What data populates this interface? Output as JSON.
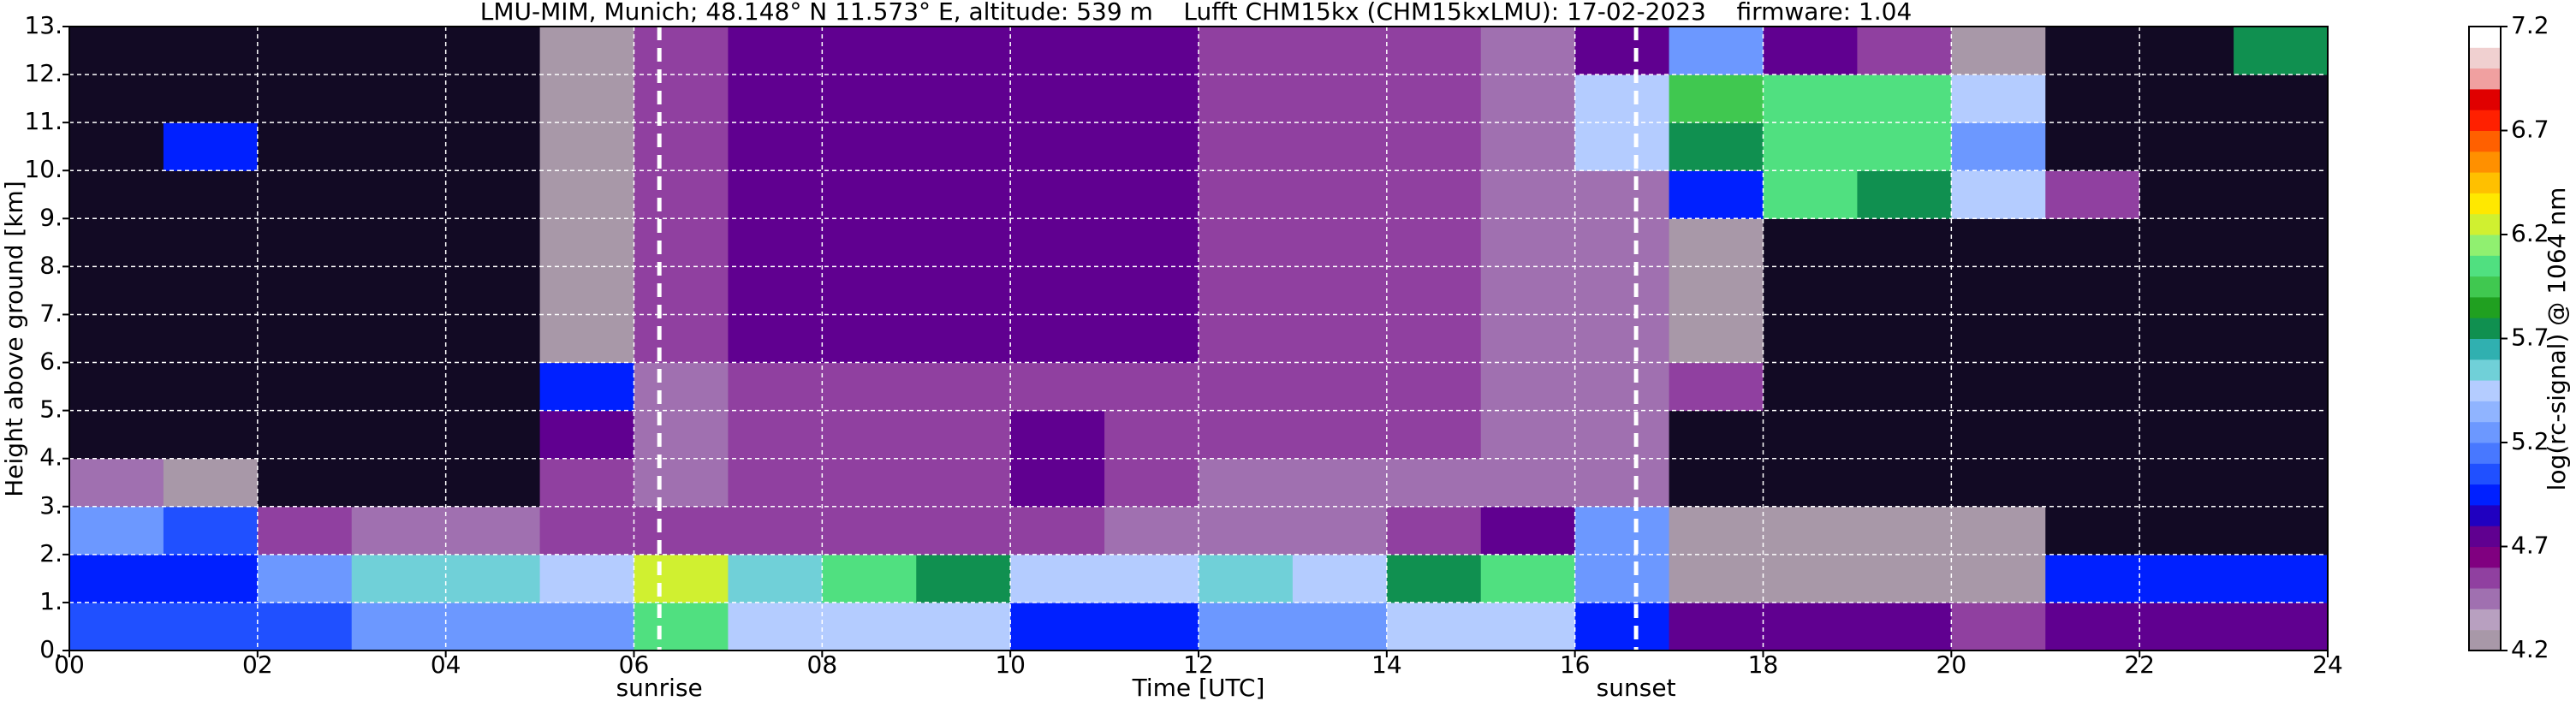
{
  "chart_data": {
    "type": "heatmap",
    "title": "LMU-MIM, Munich; 48.148° N 11.573° E, altitude: 539 m    Lufft CHM15kx (CHM15kxLMU): 17-02-2023    firmware: 1.04",
    "xlabel": "Time [UTC]",
    "ylabel": "Height above ground [km]",
    "xlim": [
      0,
      24
    ],
    "ylim": [
      0,
      13
    ],
    "xticks": [
      {
        "value": 0,
        "label": "00"
      },
      {
        "value": 2,
        "label": "02"
      },
      {
        "value": 4,
        "label": "04"
      },
      {
        "value": 6,
        "label": "06"
      },
      {
        "value": 8,
        "label": "08"
      },
      {
        "value": 10,
        "label": "10"
      },
      {
        "value": 12,
        "label": "12"
      },
      {
        "value": 14,
        "label": "14"
      },
      {
        "value": 16,
        "label": "16"
      },
      {
        "value": 18,
        "label": "18"
      },
      {
        "value": 20,
        "label": "20"
      },
      {
        "value": 22,
        "label": "22"
      },
      {
        "value": 24,
        "label": "24"
      }
    ],
    "yticks": [
      {
        "value": 0,
        "label": "0."
      },
      {
        "value": 1,
        "label": "1."
      },
      {
        "value": 2,
        "label": "2."
      },
      {
        "value": 3,
        "label": "3."
      },
      {
        "value": 4,
        "label": "4."
      },
      {
        "value": 5,
        "label": "5."
      },
      {
        "value": 6,
        "label": "6."
      },
      {
        "value": 7,
        "label": "7."
      },
      {
        "value": 8,
        "label": "8."
      },
      {
        "value": 9,
        "label": "9."
      },
      {
        "value": 10,
        "label": "10."
      },
      {
        "value": 11,
        "label": "11."
      },
      {
        "value": 12,
        "label": "12."
      },
      {
        "value": 13,
        "label": "13."
      }
    ],
    "grid": true,
    "grid_color": "#ffffff",
    "x_edges": [
      0,
      1,
      2,
      3,
      4,
      5,
      6,
      7,
      8,
      9,
      10,
      11,
      12,
      13,
      14,
      15,
      16,
      17,
      18,
      19,
      20,
      21,
      22,
      23,
      24
    ],
    "y_edges": [
      0,
      1,
      2,
      3,
      4,
      5,
      6,
      7,
      8,
      9,
      10,
      11,
      12,
      13
    ],
    "z": [
      [
        5.1,
        5.1,
        5.1,
        5.2,
        5.2,
        5.2,
        6.0,
        5.4,
        5.4,
        5.4,
        5.0,
        5.0,
        5.3,
        5.3,
        5.5,
        5.5,
        5.0,
        4.7,
        4.7,
        4.7,
        4.6,
        4.8,
        4.8,
        4.8
      ],
      [
        5.0,
        5.0,
        5.3,
        5.6,
        5.6,
        5.5,
        6.2,
        5.6,
        6.0,
        5.7,
        5.5,
        5.4,
        5.6,
        5.4,
        5.8,
        6.0,
        5.2,
        4.3,
        4.3,
        4.3,
        4.3,
        4.9,
        4.9,
        4.9
      ],
      [
        5.2,
        5.1,
        4.6,
        4.4,
        4.4,
        4.6,
        4.6,
        4.6,
        4.6,
        4.6,
        4.6,
        4.5,
        4.5,
        4.5,
        4.6,
        4.7,
        5.2,
        4.3,
        4.3,
        4.3,
        4.3,
        4.0,
        4.0,
        4.0
      ],
      [
        4.5,
        4.3,
        4.1,
        4.1,
        4.1,
        4.6,
        4.5,
        4.6,
        4.6,
        4.6,
        4.7,
        4.6,
        4.5,
        4.5,
        4.5,
        4.5,
        4.4,
        4.1,
        4.1,
        4.1,
        4.1,
        4.1,
        4.1,
        4.1
      ],
      [
        4.1,
        4.1,
        4.1,
        4.1,
        4.1,
        4.7,
        4.5,
        4.6,
        4.6,
        4.6,
        4.8,
        4.6,
        4.6,
        4.6,
        4.6,
        4.5,
        4.4,
        4.1,
        4.1,
        4.1,
        4.1,
        4.1,
        4.1,
        4.1
      ],
      [
        4.1,
        4.1,
        4.1,
        4.1,
        4.1,
        4.9,
        4.5,
        4.6,
        4.6,
        4.6,
        4.6,
        4.6,
        4.6,
        4.6,
        4.6,
        4.5,
        4.4,
        4.6,
        4.1,
        4.1,
        4.1,
        4.1,
        4.1,
        4.1
      ],
      [
        4.1,
        4.1,
        4.1,
        4.1,
        4.1,
        4.3,
        4.6,
        4.7,
        4.7,
        4.7,
        4.7,
        4.7,
        4.6,
        4.6,
        4.6,
        4.5,
        4.4,
        4.3,
        4.1,
        4.1,
        4.1,
        4.1,
        4.1,
        4.1
      ],
      [
        4.1,
        4.1,
        4.1,
        4.1,
        4.1,
        4.3,
        4.6,
        4.7,
        4.7,
        4.7,
        4.7,
        4.7,
        4.6,
        4.6,
        4.6,
        4.5,
        4.4,
        4.3,
        4.1,
        4.1,
        4.1,
        4.1,
        4.1,
        4.1
      ],
      [
        4.1,
        4.1,
        4.1,
        4.1,
        4.1,
        4.3,
        4.6,
        4.7,
        4.7,
        4.7,
        4.7,
        4.7,
        4.6,
        4.6,
        4.6,
        4.5,
        4.4,
        4.3,
        4.1,
        4.1,
        4.1,
        4.1,
        4.1,
        4.1
      ],
      [
        4.1,
        4.1,
        4.1,
        4.1,
        4.1,
        4.3,
        4.6,
        4.7,
        4.7,
        4.7,
        4.7,
        4.7,
        4.6,
        4.6,
        4.6,
        4.5,
        4.4,
        5.0,
        6.0,
        5.8,
        5.5,
        4.6,
        4.1,
        4.1
      ],
      [
        4.1,
        4.9,
        4.1,
        4.1,
        4.1,
        4.3,
        4.6,
        4.7,
        4.7,
        4.7,
        4.7,
        4.7,
        4.6,
        4.6,
        4.6,
        4.5,
        5.5,
        5.8,
        6.0,
        6.0,
        5.2,
        4.1,
        4.1,
        4.1
      ],
      [
        4.1,
        4.1,
        4.1,
        4.1,
        4.1,
        4.3,
        4.6,
        4.7,
        4.7,
        4.7,
        4.7,
        4.7,
        4.6,
        4.6,
        4.6,
        4.5,
        5.5,
        5.9,
        6.0,
        6.0,
        5.5,
        4.1,
        4.1,
        4.1
      ],
      [
        4.1,
        4.1,
        4.1,
        4.1,
        4.1,
        4.3,
        4.6,
        4.7,
        4.7,
        4.7,
        4.7,
        4.7,
        4.6,
        4.6,
        4.6,
        4.5,
        4.8,
        5.2,
        4.8,
        4.6,
        4.3,
        4.1,
        4.1,
        5.8
      ]
    ],
    "colorbar": {
      "label": "log(rc-signal) @ 1064 nm",
      "lim": [
        4.2,
        7.2
      ],
      "ticks": [
        4.2,
        4.7,
        5.2,
        5.7,
        6.2,
        6.7,
        7.2
      ],
      "colors": [
        "#a898a8",
        "#b8a0c0",
        "#a070b0",
        "#9040a0",
        "#800080",
        "#600090",
        "#2000c0",
        "#0020ff",
        "#2050ff",
        "#4878ff",
        "#6c98ff",
        "#90b4ff",
        "#b4ccff",
        "#70d0d8",
        "#30b0b0",
        "#109050",
        "#20a020",
        "#40c850",
        "#50e080",
        "#90f070",
        "#d0f030",
        "#ffe800",
        "#ffc000",
        "#ff9000",
        "#ff6000",
        "#ff2000",
        "#e00000",
        "#f0a0a0",
        "#f0d0d0",
        "#ffffff"
      ],
      "under_color": "#120a24"
    },
    "annotations": [
      {
        "x": 6.27,
        "label": "sunrise"
      },
      {
        "x": 16.65,
        "label": "sunset"
      }
    ]
  }
}
